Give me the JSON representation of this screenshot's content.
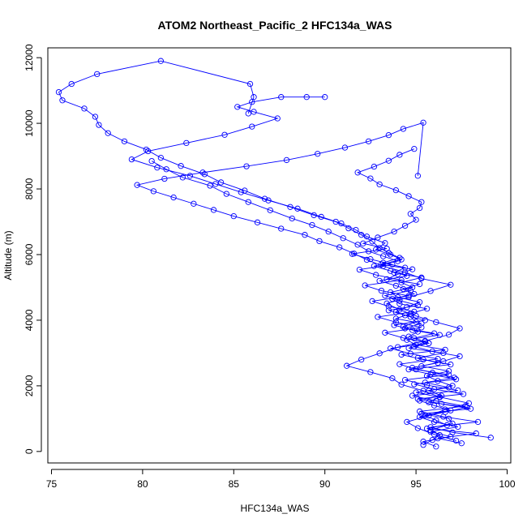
{
  "chart_data": {
    "type": "line",
    "title": "ATOM2 Northeast_Pacific_2 HFC134a_WAS",
    "xlabel": "HFC134a_WAS",
    "ylabel": "Altitude (m)",
    "xlim": [
      74.8,
      100.2
    ],
    "ylim": [
      -350,
      12300
    ],
    "xticks": [
      75,
      80,
      85,
      90,
      95,
      100
    ],
    "yticks": [
      0,
      2000,
      4000,
      6000,
      8000,
      10000,
      12000
    ],
    "grid": false,
    "color": "#0000ff",
    "series": [
      {
        "x": [
          95.4,
          95.9,
          96.3,
          95.8,
          96.7,
          96.1,
          95.5,
          96.9,
          96.0,
          95.2,
          96.4,
          95.7,
          97.0,
          96.2,
          95.6,
          96.8,
          95.3,
          96.5,
          97.4,
          95.9,
          94.9,
          95.5,
          94.6,
          95.1,
          94.3,
          95.0,
          94.7,
          93.9,
          94.5,
          95.2,
          94.0,
          93.6,
          94.8,
          94.2,
          95.3,
          93.8,
          94.4,
          93.2,
          94.1,
          93.5,
          93.0,
          92.6,
          92.0,
          91.3,
          90.6,
          89.4,
          88.1,
          86.7,
          85.6,
          84.3,
          83.4,
          82.1,
          81.0,
          80.2,
          79.0,
          78.1,
          77.6,
          77.4,
          76.8,
          75.6,
          75.4,
          76.1,
          77.5,
          81.0,
          85.9,
          86.1,
          85.8
        ],
        "y": [
          200,
          350,
          500,
          650,
          800,
          950,
          1100,
          1250,
          1400,
          1550,
          1700,
          1850,
          2000,
          2150,
          2300,
          2450,
          2600,
          2750,
          2900,
          3050,
          3200,
          3350,
          3500,
          3650,
          3800,
          3950,
          4100,
          4250,
          4400,
          4550,
          4700,
          4850,
          5000,
          5150,
          5300,
          5450,
          5600,
          5750,
          5900,
          6050,
          6200,
          6400,
          6600,
          6800,
          7000,
          7200,
          7450,
          7700,
          7950,
          8200,
          8450,
          8700,
          8950,
          9200,
          9450,
          9700,
          9950,
          10200,
          10450,
          10700,
          10950,
          11200,
          11500,
          11900,
          11200,
          10800,
          10300
        ]
      },
      {
        "x": [
          96.1,
          95.4,
          96.9,
          95.8,
          97.3,
          96.0,
          95.2,
          96.6,
          97.8,
          95.7,
          96.3,
          95.0,
          96.8,
          95.5,
          97.1,
          95.9,
          94.8,
          96.2,
          95.1,
          96.5,
          94.6,
          95.7,
          94.9,
          96.0,
          94.4,
          95.3,
          93.9,
          94.7,
          95.6,
          94.1,
          93.7,
          94.9,
          94.3,
          95.2,
          93.4,
          94.0,
          94.8,
          93.1,
          94.2,
          93.6,
          92.8,
          93.3,
          92.3,
          91.7,
          90.9,
          89.8,
          88.5,
          86.9,
          85.4,
          84.0,
          82.6,
          80.8,
          79.4,
          80.3,
          82.4,
          84.5,
          86.0,
          87.4,
          86.1,
          85.2,
          86.0,
          87.6,
          89.0,
          90.0
        ],
        "y": [
          150,
          300,
          450,
          600,
          750,
          900,
          1050,
          1200,
          1350,
          1500,
          1650,
          1800,
          1950,
          2100,
          2250,
          2400,
          2550,
          2700,
          2850,
          3000,
          3150,
          3300,
          3450,
          3600,
          3750,
          3900,
          4050,
          4200,
          4350,
          4500,
          4650,
          4800,
          4950,
          5100,
          5250,
          5400,
          5550,
          5700,
          5850,
          6000,
          6150,
          6350,
          6550,
          6750,
          6950,
          7150,
          7400,
          7650,
          7900,
          8150,
          8400,
          8650,
          8900,
          9150,
          9400,
          9650,
          9900,
          10150,
          10350,
          10500,
          10650,
          10800,
          10800,
          10800
        ]
      },
      {
        "x": [
          97.5,
          96.2,
          98.3,
          95.6,
          97.0,
          96.8,
          95.3,
          98.0,
          96.4,
          95.1,
          97.6,
          96.0,
          94.9,
          97.2,
          95.8,
          94.6,
          96.9,
          95.4,
          94.2,
          96.6,
          95.0,
          94.5,
          96.3,
          94.8,
          93.8,
          95.5,
          94.4,
          93.5,
          95.1,
          94.1,
          93.3,
          94.7,
          93.9,
          93.0,
          94.5,
          93.6,
          92.7,
          94.0,
          93.2,
          92.4,
          91.8,
          91.0,
          90.2,
          89.3,
          88.2,
          87.0,
          85.8,
          84.6,
          83.7,
          82.2,
          81.3,
          80.5
        ],
        "y": [
          250,
          400,
          550,
          700,
          850,
          1000,
          1150,
          1300,
          1450,
          1600,
          1750,
          1900,
          2050,
          2200,
          2350,
          2500,
          2650,
          2800,
          2950,
          3100,
          3250,
          3400,
          3550,
          3700,
          3850,
          4000,
          4150,
          4300,
          4450,
          4600,
          4750,
          4900,
          5050,
          5200,
          5350,
          5500,
          5650,
          5800,
          5950,
          6100,
          6300,
          6500,
          6700,
          6900,
          7100,
          7350,
          7600,
          7850,
          8100,
          8350,
          8600,
          8850
        ]
      },
      {
        "x": [
          99.1,
          97.0,
          95.8,
          98.4,
          96.5,
          95.2,
          97.7,
          96.1,
          94.8,
          97.3,
          95.6,
          94.4,
          96.8,
          95.0,
          94.1,
          96.2,
          94.7,
          93.6,
          95.7,
          94.3,
          93.3,
          95.3,
          93.9,
          92.9,
          94.9,
          93.5,
          92.6,
          94.6,
          93.1,
          92.2,
          94.2,
          92.8,
          91.9,
          93.7,
          92.5,
          91.5,
          93.4,
          92.1,
          92.9,
          93.8,
          94.4,
          95.0,
          94.7,
          95.2,
          95.3,
          94.6,
          93.9,
          93.0,
          92.5,
          91.8,
          92.7,
          93.5,
          94.1,
          94.9
        ],
        "y": [
          420,
          580,
          740,
          900,
          1060,
          1220,
          1380,
          1540,
          1700,
          1860,
          2020,
          2180,
          2340,
          2500,
          2660,
          2820,
          2980,
          3140,
          3300,
          3460,
          3620,
          3780,
          3940,
          4100,
          4260,
          4420,
          4580,
          4740,
          4900,
          5060,
          5220,
          5380,
          5540,
          5700,
          5860,
          6020,
          6180,
          6340,
          6520,
          6700,
          6880,
          7060,
          7240,
          7420,
          7600,
          7780,
          7960,
          8140,
          8320,
          8500,
          8680,
          8860,
          9040,
          9220
        ]
      },
      {
        "x": [
          97.2,
          96.0,
          95.1,
          94.5,
          95.7,
          96.6,
          97.9,
          96.3,
          95.4,
          94.2,
          93.7,
          92.5,
          91.2,
          92.0,
          93.0,
          94.0,
          95.5,
          96.8,
          97.4,
          96.1,
          95.0,
          94.1,
          93.4,
          94.6,
          95.8,
          96.9,
          95.3,
          94.4,
          93.2,
          92.3,
          91.6,
          90.8,
          89.7,
          88.9,
          87.6,
          86.3,
          85.0,
          83.9,
          82.8,
          81.7,
          80.6,
          79.7,
          81.2,
          83.3,
          85.7,
          87.9,
          89.6,
          91.1,
          92.4,
          93.5,
          94.3,
          95.4,
          95.1
        ],
        "y": [
          330,
          520,
          710,
          900,
          1090,
          1280,
          1470,
          1660,
          1850,
          2040,
          2230,
          2420,
          2610,
          2800,
          2990,
          3180,
          3370,
          3560,
          3750,
          3940,
          4130,
          4320,
          4510,
          4700,
          4890,
          5080,
          5270,
          5460,
          5650,
          5840,
          6030,
          6220,
          6410,
          6600,
          6790,
          6980,
          7170,
          7360,
          7550,
          7740,
          7930,
          8120,
          8310,
          8500,
          8690,
          8880,
          9070,
          9260,
          9450,
          9640,
          9830,
          10020,
          8400
        ]
      }
    ]
  }
}
